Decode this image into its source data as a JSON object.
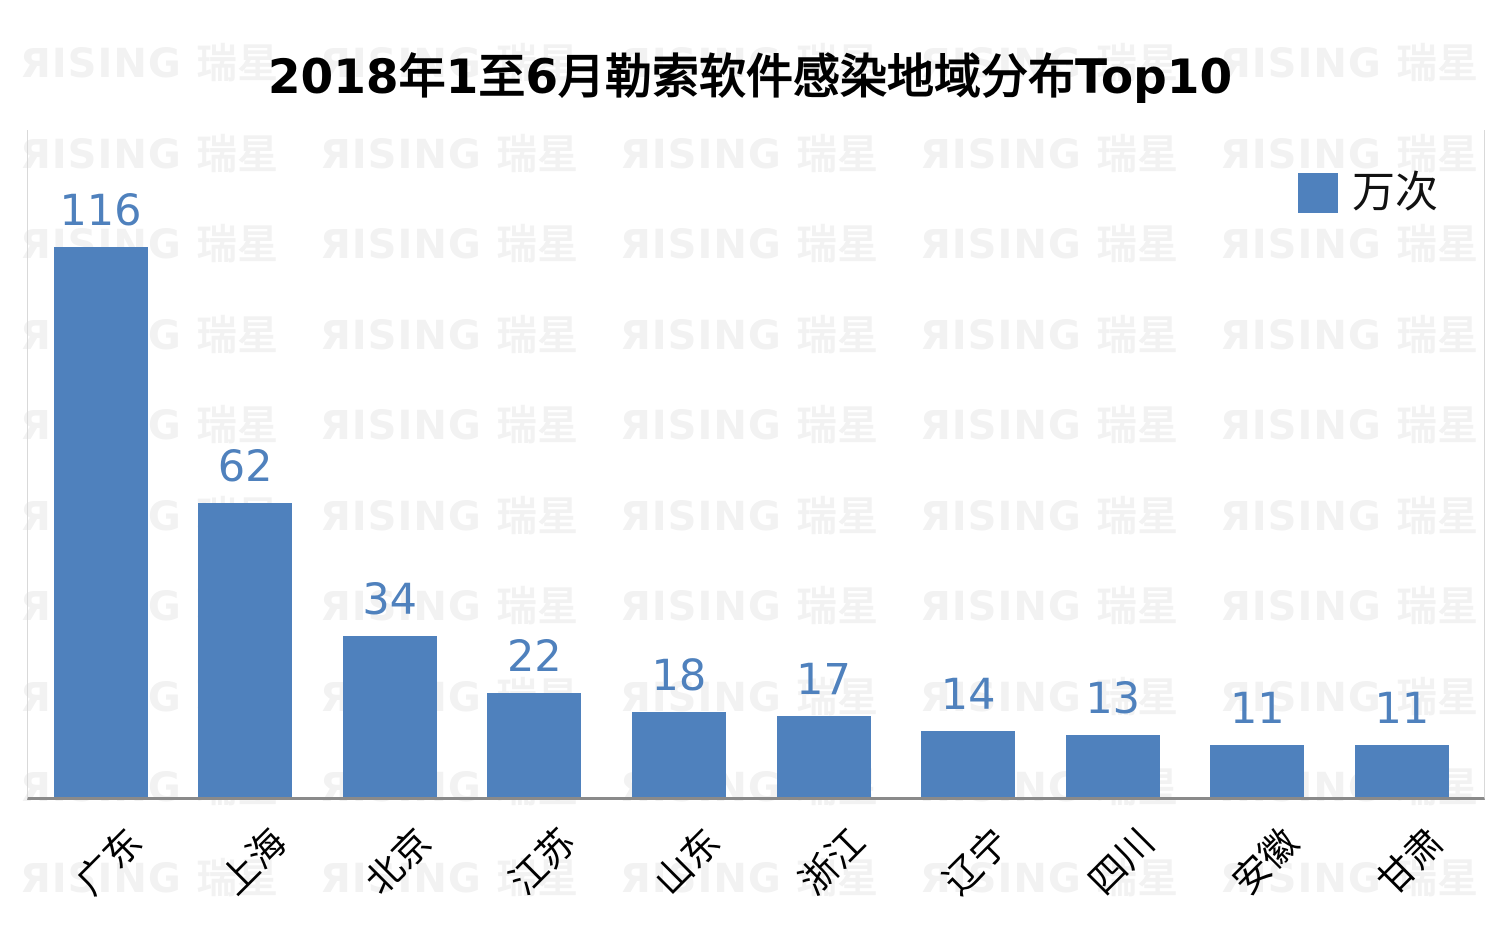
{
  "title": "2018年1至6月勒索软件感染地域分布Top10",
  "legend": {
    "label": "万次",
    "color": "#4F81BD",
    "position": "top-right"
  },
  "watermark": {
    "text": "ЯISING 瑞星",
    "color": "#f2f2f2"
  },
  "colors": {
    "bar": "#4F81BD",
    "data_label": "#4F81BD",
    "axis_line": "#8a8a8a",
    "plot_border": "#d9d9d9",
    "title_text": "#000000"
  },
  "chart_data": {
    "type": "bar",
    "title": "2018年1至6月勒索软件感染地域分布Top10",
    "categories": [
      "广东",
      "上海",
      "北京",
      "江苏",
      "山东",
      "浙江",
      "辽宁",
      "四川",
      "安徽",
      "甘肃"
    ],
    "values": [
      116,
      62,
      34,
      22,
      18,
      17,
      14,
      13,
      11,
      11
    ],
    "series_name": "万次",
    "unit": "万次",
    "xlabel": "",
    "ylabel": "",
    "ylim": [
      0,
      140
    ],
    "y_axis_visible": false,
    "grid": false,
    "data_labels": true,
    "legend_position": "top-right",
    "x_tick_rotation_deg": 45
  }
}
